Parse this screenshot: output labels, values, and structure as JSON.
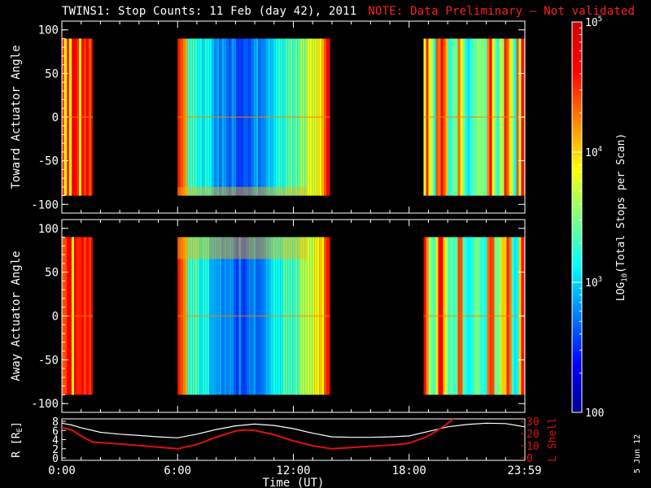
{
  "title": "TWINS1: Stop Counts: 11 Feb (day  42), 2011",
  "note": "NOTE: Data Preliminary – Not validated",
  "date_stamp": "5 Jun 12",
  "colors": {
    "background": "#000000",
    "axes": "#ffffff",
    "note": "#ff2020",
    "r_line": "#ffffff",
    "lshell_line": "#dd1010"
  },
  "chart_data": [
    {
      "type": "heatmap",
      "ylabel": "Toward Actuator Angle",
      "ylim": [
        -110,
        110
      ],
      "yticks": [
        100,
        50,
        0,
        -50,
        -100
      ],
      "xlim": [
        0,
        24
      ],
      "data_bins_y": [
        -90,
        90
      ],
      "segments": [
        {
          "start_hr": 0.0,
          "end_hr": 1.6,
          "profile": "high"
        },
        {
          "start_hr": 6.0,
          "end_hr": 13.9,
          "profile": "dip"
        },
        {
          "start_hr": 18.75,
          "end_hr": 24.0,
          "profile": "bands"
        }
      ]
    },
    {
      "type": "heatmap",
      "ylabel": "Away Actuator Angle",
      "ylim": [
        -110,
        110
      ],
      "yticks": [
        100,
        50,
        0,
        -50,
        -100
      ],
      "xlim": [
        0,
        24
      ],
      "data_bins_y": [
        -90,
        90
      ],
      "segments": [
        {
          "start_hr": 0.0,
          "end_hr": 1.6,
          "profile": "high"
        },
        {
          "start_hr": 6.0,
          "end_hr": 13.9,
          "profile": "dip"
        },
        {
          "start_hr": 18.75,
          "end_hr": 24.0,
          "profile": "bands"
        }
      ]
    },
    {
      "type": "line",
      "xlabel": "Time (UT)",
      "xlim": [
        0,
        24
      ],
      "xtick_labels": [
        "0:00",
        "6:00",
        "12:00",
        "18:00",
        "23:59"
      ],
      "xtick_values": [
        0,
        6,
        12,
        18,
        23.98
      ],
      "left_axis": {
        "label": "R [R",
        "label_sub": "E",
        "label_end": "]",
        "ylim": [
          0,
          8
        ],
        "ticks": [
          0,
          2,
          4,
          6,
          8
        ]
      },
      "right_axis": {
        "label": "L Shell",
        "ylim": [
          0,
          30
        ],
        "ticks": [
          0,
          10,
          20,
          30
        ]
      },
      "series": [
        {
          "axis": "left",
          "color": "#ffffff",
          "x": [
            0,
            0.5,
            1,
            2,
            3,
            4,
            5,
            6,
            7,
            8,
            9,
            10,
            11,
            12,
            13,
            14,
            15,
            16,
            17,
            18,
            19,
            20,
            21,
            22,
            23,
            24
          ],
          "y": [
            7.6,
            7.2,
            6.6,
            5.6,
            5.2,
            4.9,
            4.6,
            4.4,
            5.2,
            6.2,
            7.0,
            7.4,
            7.1,
            6.4,
            5.4,
            4.6,
            4.5,
            4.5,
            4.6,
            4.8,
            5.8,
            6.8,
            7.3,
            7.6,
            7.5,
            6.8
          ]
        },
        {
          "axis": "right",
          "color": "#dd1010",
          "x": [
            0,
            0.5,
            1,
            1.6,
            3,
            4.5,
            6,
            7,
            8,
            9,
            9.5,
            10,
            11,
            12,
            13,
            14,
            15,
            16,
            17,
            18,
            19,
            19.8,
            20.3
          ],
          "y": [
            25,
            23,
            18,
            13,
            11.5,
            9.5,
            7.5,
            11,
            17,
            22,
            23,
            22.5,
            19,
            14,
            10,
            7.5,
            8.5,
            9.5,
            10.5,
            12,
            18,
            26,
            32
          ]
        }
      ]
    }
  ],
  "colorbar": {
    "label_prefix": "LOG",
    "label_sub": "10",
    "label_suffix": "(Total Stops per Scan)",
    "tick_labels": [
      {
        "base": "10",
        "exp": "5",
        "value": 100000
      },
      {
        "base": "10",
        "exp": "4",
        "value": 10000
      },
      {
        "base": "10",
        "exp": "3",
        "value": 1000
      },
      {
        "base": "100",
        "exp": "",
        "value": 100
      }
    ],
    "range": [
      100,
      100000
    ],
    "colormap": [
      "#00008f",
      "#0000ff",
      "#0080ff",
      "#00ffff",
      "#80ff80",
      "#ffff00",
      "#ff8000",
      "#ff0000",
      "#d00000"
    ]
  }
}
